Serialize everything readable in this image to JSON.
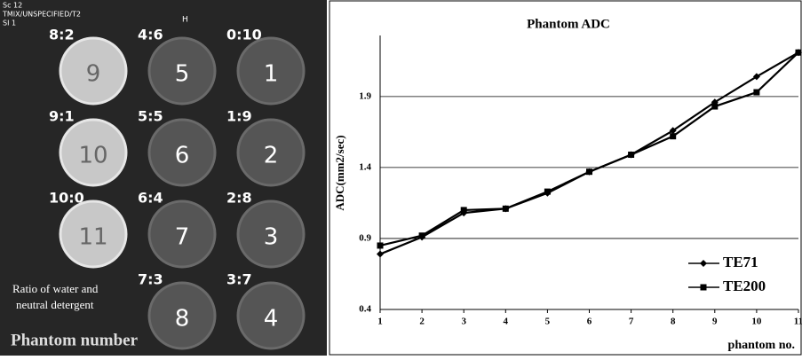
{
  "image": {
    "header": [
      "Sc 12",
      "TMIX/UNSPECIFIED/T2",
      "SI 1"
    ],
    "orientation": "H",
    "phantoms": [
      {
        "ratio": "8:2",
        "number": "9"
      },
      {
        "ratio": "4:6",
        "number": "5"
      },
      {
        "ratio": "0:10",
        "number": "1"
      },
      {
        "ratio": "9:1",
        "number": "10"
      },
      {
        "ratio": "5:5",
        "number": "6"
      },
      {
        "ratio": "1:9",
        "number": "2"
      },
      {
        "ratio": "10:0",
        "number": "11"
      },
      {
        "ratio": "6:4",
        "number": "7"
      },
      {
        "ratio": "2:8",
        "number": "3"
      },
      {
        "ratio": "7:3",
        "number": "8"
      },
      {
        "ratio": "3:7",
        "number": "4"
      }
    ],
    "caption": [
      "Ratio of water and",
      "neutral detergent"
    ],
    "footer": "Phantom number"
  },
  "chart_data": {
    "type": "line",
    "title": "Phantom ADC",
    "y_label": "ADC(mm2/sec)",
    "x_label": "phantom no.",
    "x": [
      1,
      2,
      3,
      4,
      5,
      6,
      7,
      8,
      9,
      10,
      11
    ],
    "xlim": [
      1,
      11
    ],
    "xticks": [
      1,
      2,
      3,
      4,
      5,
      6,
      7,
      8,
      9,
      10,
      11
    ],
    "ylim": [
      0.4,
      2.33
    ],
    "yticks": [
      0.4,
      0.9,
      1.4,
      1.9
    ],
    "grid": true,
    "legend": "bottom-right",
    "series": [
      {
        "name": "TE71",
        "color": "#000000",
        "marker": "diamond",
        "values": [
          0.79,
          0.91,
          1.08,
          1.11,
          1.22,
          1.37,
          1.49,
          1.66,
          1.86,
          2.04,
          2.21
        ]
      },
      {
        "name": "TE200",
        "color": "#000000",
        "marker": "square",
        "values": [
          0.85,
          0.92,
          1.1,
          1.11,
          1.23,
          1.37,
          1.49,
          1.62,
          1.83,
          1.93,
          2.21
        ]
      }
    ]
  }
}
